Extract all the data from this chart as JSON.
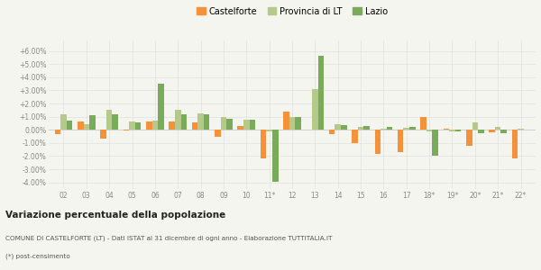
{
  "years": [
    "02",
    "03",
    "04",
    "05",
    "06",
    "07",
    "08",
    "09",
    "10",
    "11*",
    "12",
    "13",
    "14",
    "15",
    "16",
    "17",
    "18*",
    "19*",
    "20*",
    "21*",
    "22*"
  ],
  "castelforte": [
    -0.3,
    0.65,
    -0.65,
    -0.05,
    0.65,
    0.65,
    0.55,
    -0.5,
    0.3,
    -2.2,
    1.4,
    0.0,
    -0.3,
    -1.0,
    -1.8,
    -1.7,
    1.0,
    0.1,
    -1.2,
    -0.2,
    -2.2
  ],
  "provincia_lt": [
    1.2,
    0.45,
    1.5,
    0.65,
    0.7,
    1.55,
    1.25,
    0.95,
    0.8,
    -0.1,
    1.0,
    3.1,
    0.4,
    0.2,
    0.1,
    0.15,
    -0.1,
    -0.1,
    0.55,
    0.2,
    0.1
  ],
  "lazio": [
    0.7,
    1.1,
    1.15,
    0.6,
    3.5,
    1.2,
    1.2,
    0.85,
    0.8,
    -3.95,
    1.0,
    5.65,
    0.35,
    0.3,
    0.2,
    0.2,
    -2.0,
    -0.15,
    -0.25,
    -0.25,
    0.05
  ],
  "color_castelforte": "#f4923b",
  "color_provincia": "#b5c98a",
  "color_lazio": "#7aab5a",
  "bg_color": "#f5f5f0",
  "grid_color": "#e0e0e0",
  "ylim": [
    -4.5,
    6.8
  ],
  "yticks": [
    -4.0,
    -3.0,
    -2.0,
    -1.0,
    0.0,
    1.0,
    2.0,
    3.0,
    4.0,
    5.0,
    6.0
  ],
  "ytick_labels": [
    "-4.00%",
    "-3.00%",
    "-2.00%",
    "-1.00%",
    "0.00%",
    "+1.00%",
    "+2.00%",
    "+3.00%",
    "+4.00%",
    "+5.00%",
    "+6.00%"
  ],
  "title_bold": "Variazione percentuale della popolazione",
  "footer1": "COMUNE DI CASTELFORTE (LT) - Dati ISTAT al 31 dicembre di ogni anno - Elaborazione TUTTITALIA.IT",
  "footer2": "(*) post-censimento",
  "legend_labels": [
    "Castelforte",
    "Provincia di LT",
    "Lazio"
  ]
}
